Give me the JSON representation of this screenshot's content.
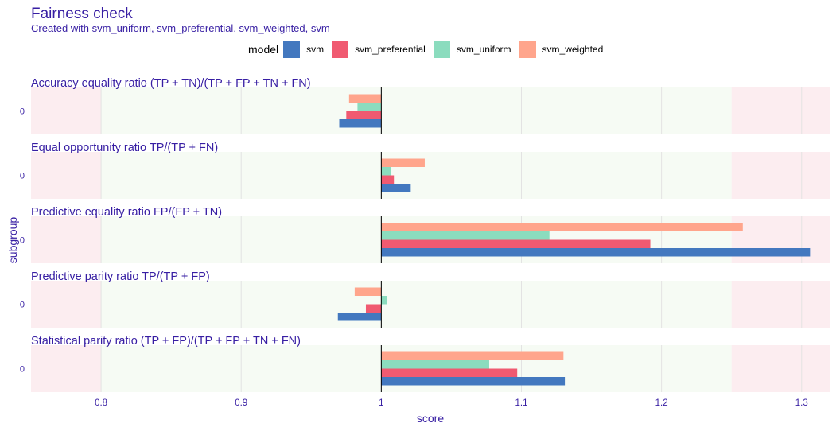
{
  "colors": {
    "text": "#371ea3",
    "green_zone": "#f6fbf4",
    "red_zone": "#fcedf0",
    "grid": "#e3e3e3",
    "ref_line": "#000000"
  },
  "chart_data": {
    "type": "bar",
    "orientation": "horizontal",
    "title": "Fairness check",
    "subtitle": "Created with svm_uniform, svm_preferential, svm_weighted, svm",
    "legend_title": "model",
    "legend_position": "top",
    "xlabel": "score",
    "ylabel": "subgroup",
    "xlim": [
      0.75,
      1.32
    ],
    "xticks": [
      0.8,
      0.9,
      1,
      1.1,
      1.2,
      1.3
    ],
    "xtick_labels": [
      "0.8",
      "0.9",
      "1",
      "1.1",
      "1.2",
      "1.3"
    ],
    "reference_value": 1,
    "fair_range": [
      0.8,
      1.25
    ],
    "grid": true,
    "series": [
      {
        "name": "svm",
        "color": "#4378bf"
      },
      {
        "name": "svm_preferential",
        "color": "#f05a71"
      },
      {
        "name": "svm_uniform",
        "color": "#8bdcbe"
      },
      {
        "name": "svm_weighted",
        "color": "#ffa58c"
      }
    ],
    "panels": [
      {
        "metric": "Accuracy equality ratio",
        "formula": "(TP + TN)/(TP + FP + TN + FN)",
        "subgroup": "0",
        "values": {
          "svm": 0.97,
          "svm_preferential": 0.975,
          "svm_uniform": 0.983,
          "svm_weighted": 0.977
        }
      },
      {
        "metric": "Equal opportunity ratio",
        "formula": "TP/(TP + FN)",
        "subgroup": "0",
        "values": {
          "svm": 1.021,
          "svm_preferential": 1.009,
          "svm_uniform": 1.007,
          "svm_weighted": 1.031
        }
      },
      {
        "metric": "Predictive equality ratio",
        "formula": "FP/(FP + TN)",
        "subgroup": "0",
        "values": {
          "svm": 1.306,
          "svm_preferential": 1.192,
          "svm_uniform": 1.12,
          "svm_weighted": 1.258
        }
      },
      {
        "metric": "Predictive parity ratio",
        "formula": "TP/(TP + FP)",
        "subgroup": "0",
        "values": {
          "svm": 0.969,
          "svm_preferential": 0.989,
          "svm_uniform": 1.004,
          "svm_weighted": 0.981
        }
      },
      {
        "metric": "Statistical parity ratio",
        "formula": "(TP + FP)/(TP + FP + TN + FN)",
        "subgroup": "0",
        "values": {
          "svm": 1.131,
          "svm_preferential": 1.097,
          "svm_uniform": 1.077,
          "svm_weighted": 1.13
        }
      }
    ]
  }
}
